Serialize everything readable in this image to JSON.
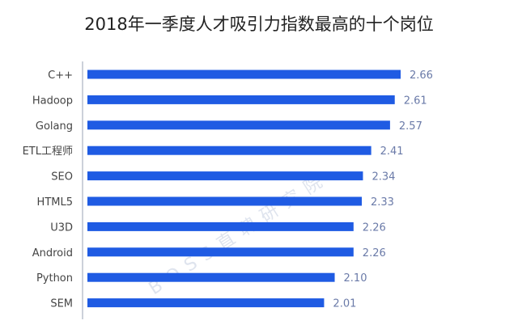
{
  "chart_data": {
    "type": "bar",
    "orientation": "horizontal",
    "title": "2018年一季度人才吸引力指数最高的十个岗位",
    "categories": [
      "C++",
      "Hadoop",
      "Golang",
      "ETL工程师",
      "SEO",
      "HTML5",
      "U3D",
      "Android",
      "Python",
      "SEM"
    ],
    "values": [
      2.66,
      2.61,
      2.57,
      2.41,
      2.34,
      2.33,
      2.26,
      2.26,
      2.1,
      2.01
    ],
    "value_labels": [
      "2.66",
      "2.61",
      "2.57",
      "2.41",
      "2.34",
      "2.33",
      "2.26",
      "2.26",
      "2.10",
      "2.01"
    ],
    "xlim": [
      0,
      2.66
    ],
    "grid": false,
    "bar_color": "#1f5be3",
    "watermark": "BOSS直聘研究院"
  }
}
